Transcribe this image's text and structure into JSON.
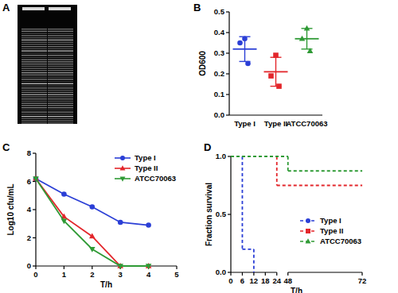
{
  "chart_data": [
    {
      "type": "image",
      "title": "A"
    },
    {
      "type": "dot",
      "title": "B",
      "y_label": "OD600",
      "categories": [
        "Type I",
        "Type II",
        "ATCC70063"
      ],
      "ylim": [
        0,
        0.5
      ],
      "yticks": [
        {
          "value": 0,
          "label": "0.0"
        },
        {
          "value": 0.1,
          "label": "0.1"
        },
        {
          "value": 0.2,
          "label": "0.2"
        },
        {
          "value": 0.3,
          "label": "0.3"
        },
        {
          "value": 0.4,
          "label": "0.4"
        },
        {
          "value": 0.5,
          "label": "0.5"
        }
      ],
      "series": [
        {
          "color": "#2b3fd6",
          "marker": "circle",
          "values": [
            0.37,
            0.35,
            0.25
          ],
          "mean": 0.32,
          "sd": 0.06
        },
        {
          "color": "#e3262b",
          "marker": "square",
          "values": [
            0.29,
            0.19,
            0.14
          ],
          "mean": 0.21,
          "sd": 0.07
        },
        {
          "color": "#2f9a35",
          "marker": "triangle",
          "values": [
            0.42,
            0.37,
            0.31
          ],
          "mean": 0.37,
          "sd": 0.05
        }
      ]
    },
    {
      "type": "line",
      "title": "C",
      "x_label": "T/h",
      "y_label": "Log10 cfu/mL",
      "x": [
        0,
        1,
        2,
        3,
        4
      ],
      "xlim": [
        0,
        5
      ],
      "xticks": [
        0,
        1,
        2,
        3,
        4,
        5
      ],
      "ylim": [
        0,
        8
      ],
      "yticks": [
        0,
        2,
        4,
        6,
        8
      ],
      "legend": "upper right",
      "series": [
        {
          "name": "Type I",
          "color": "#2b3fd6",
          "marker": "circle",
          "values": [
            6.2,
            5.1,
            4.2,
            3.1,
            2.9
          ]
        },
        {
          "name": "Type II",
          "color": "#e3262b",
          "marker": "triangle",
          "values": [
            6.2,
            3.5,
            2.1,
            0,
            0
          ]
        },
        {
          "name": "ATCC70063",
          "color": "#2f9a35",
          "marker": "triangle-down",
          "values": [
            6.2,
            3.2,
            1.2,
            0,
            0
          ]
        }
      ]
    },
    {
      "type": "step",
      "title": "D",
      "x_label": "T/h",
      "y_label": "Fraction survival",
      "xlim": [
        0,
        72
      ],
      "xticks": [
        0,
        6,
        12,
        18,
        24,
        48,
        72
      ],
      "ylim": [
        0,
        1
      ],
      "yticks": [
        {
          "value": 0,
          "label": "0.0"
        },
        {
          "value": 0.5,
          "label": "0.5"
        },
        {
          "value": 1,
          "label": "1.0"
        }
      ],
      "legend": "right",
      "series": [
        {
          "name": "Type I",
          "color": "#2b3fd6",
          "marker": "circle",
          "line_style": "dashed",
          "x": [
            0,
            6,
            12
          ],
          "values": [
            1,
            0.2,
            0
          ]
        },
        {
          "name": "Type II",
          "color": "#e3262b",
          "marker": "square",
          "line_style": "dashed",
          "x": [
            0,
            24,
            72
          ],
          "values": [
            1,
            0.75,
            0.75
          ]
        },
        {
          "name": "ATCC70063",
          "color": "#2f9a35",
          "marker": "triangle",
          "line_style": "dashed",
          "x": [
            0,
            48,
            72
          ],
          "values": [
            1,
            0.875,
            0.875
          ]
        }
      ]
    }
  ]
}
